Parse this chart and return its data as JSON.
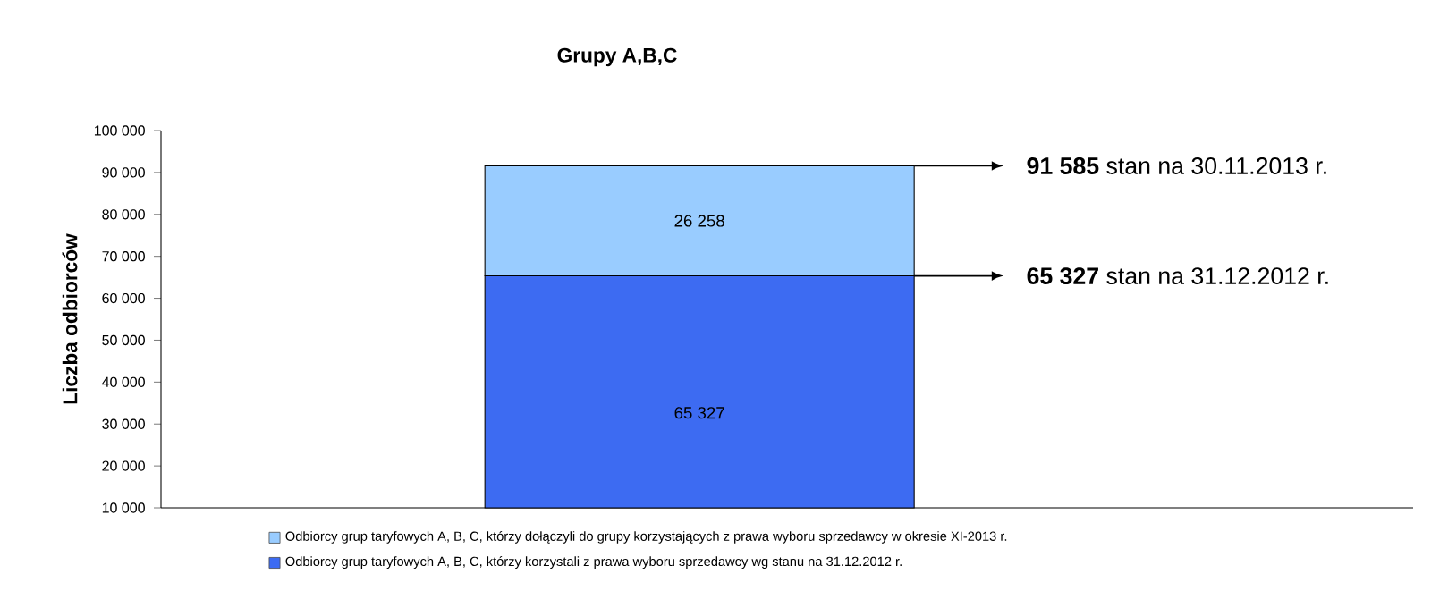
{
  "chart_data": {
    "type": "bar",
    "stacked": true,
    "title": "Grupy A,B,C",
    "ylabel": "Liczba odbiorców",
    "categories": [
      null
    ],
    "series": [
      {
        "name": "Odbiorcy grup taryfowych A, B, C, którzy korzystali z prawa wyboru sprzedawcy wg stanu na 31.12.2012 r.",
        "color": "#3d6bf2",
        "values": [
          65327
        ],
        "value_labels": [
          "65 327"
        ]
      },
      {
        "name": "Odbiorcy grup taryfowych A, B, C, którzy dołączyli do grupy korzystających z prawa wyboru sprzedawcy w okresie XI-2013 r.",
        "color": "#99ccff",
        "values": [
          26258
        ],
        "value_labels": [
          "26 258"
        ]
      }
    ],
    "ylim": [
      10000,
      100000
    ],
    "yticks": [
      {
        "value": 10000,
        "label": "10 000"
      },
      {
        "value": 20000,
        "label": "20 000"
      },
      {
        "value": 30000,
        "label": "30 000"
      },
      {
        "value": 40000,
        "label": "40 000"
      },
      {
        "value": 50000,
        "label": "50 000"
      },
      {
        "value": 60000,
        "label": "60 000"
      },
      {
        "value": 70000,
        "label": "70 000"
      },
      {
        "value": 80000,
        "label": "80 000"
      },
      {
        "value": 90000,
        "label": "90 000"
      },
      {
        "value": 100000,
        "label": "100 000"
      }
    ],
    "annotations": [
      "**91 585** stan na 30.11.2013 r.",
      "**65 327** stan na 31.12.2012 r."
    ],
    "legend": "bottom"
  }
}
